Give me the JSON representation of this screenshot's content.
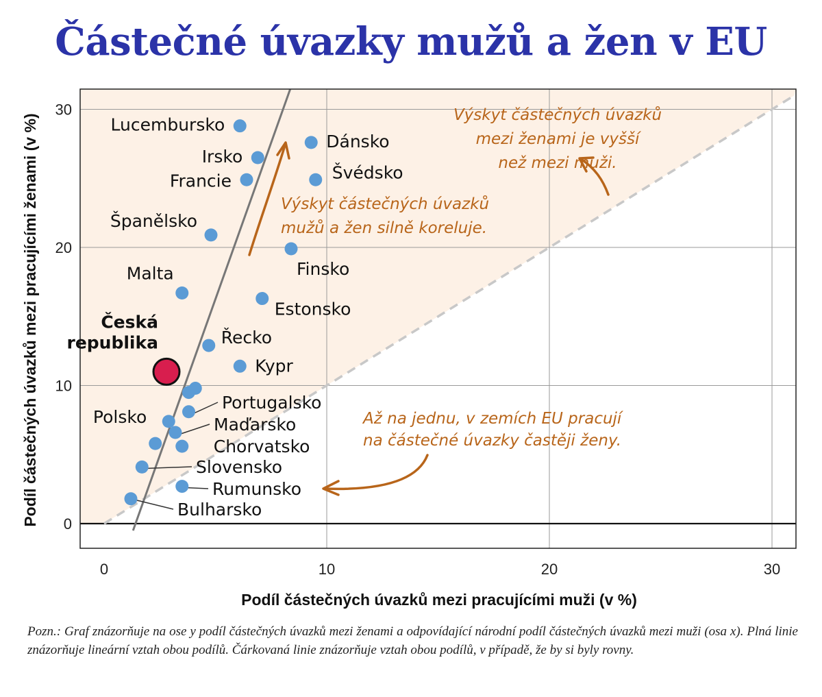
{
  "title": "Částečné úvazky mužů a žen v EU",
  "footnote": "Pozn.: Graf znázorňuje na ose y podíl částečných úvazků mezi ženami a odpovídající národní podíl částečných úvazků mezi muži (osa x). Plná linie znázorňuje lineární vztah obou podílů. Čárkovaná linie znázorňuje vztah obou podílů, v případě, že by si byly rovny.",
  "colors": {
    "title": "#2b33a8",
    "point": "#5b9bd5",
    "highlight": "#d81e4e",
    "annotation": "#b8651a",
    "shaded_region": "#fdf1e6",
    "trend_line": "#777777",
    "equality_line": "#c8c8c8"
  },
  "chart_data": {
    "type": "scatter",
    "xlabel": "Podíl částečných úvazků mezi pracujícími muži (v %)",
    "ylabel": "Podíl částečných úvazků mezi pracujícími ženami (v %)",
    "xlim": [
      -1,
      31
    ],
    "ylim": [
      -1.8,
      31.5
    ],
    "xticks": [
      0,
      10,
      20,
      30
    ],
    "yticks": [
      0,
      10,
      20,
      30
    ],
    "grid": true,
    "points": [
      {
        "label": "Lucembursko",
        "x": 6.1,
        "y": 28.8
      },
      {
        "label": "Dánsko",
        "x": 9.3,
        "y": 27.6
      },
      {
        "label": "Irsko",
        "x": 6.9,
        "y": 26.5
      },
      {
        "label": "Francie",
        "x": 6.4,
        "y": 24.9
      },
      {
        "label": "Švédsko",
        "x": 9.5,
        "y": 24.9
      },
      {
        "label": "Španělsko",
        "x": 4.8,
        "y": 20.9
      },
      {
        "label": "Finsko",
        "x": 8.4,
        "y": 19.9
      },
      {
        "label": "Malta",
        "x": 3.5,
        "y": 16.7
      },
      {
        "label": "Estonsko",
        "x": 7.1,
        "y": 16.3
      },
      {
        "label": "Řecko",
        "x": 4.7,
        "y": 12.9
      },
      {
        "label": "Kypr",
        "x": 6.1,
        "y": 11.4
      },
      {
        "label": "Česká republika",
        "x": 2.8,
        "y": 11.0,
        "highlight": true
      },
      {
        "label": "",
        "x": 4.1,
        "y": 9.8
      },
      {
        "label": "",
        "x": 3.8,
        "y": 9.5
      },
      {
        "label": "Portugalsko",
        "x": 3.8,
        "y": 8.1
      },
      {
        "label": "Polsko",
        "x": 2.9,
        "y": 7.4
      },
      {
        "label": "Maďarsko",
        "x": 3.2,
        "y": 6.6
      },
      {
        "label": "",
        "x": 2.3,
        "y": 5.8
      },
      {
        "label": "Chorvatsko",
        "x": 3.5,
        "y": 5.6
      },
      {
        "label": "Slovensko",
        "x": 1.7,
        "y": 4.1
      },
      {
        "label": "Rumunsko",
        "x": 3.5,
        "y": 2.7
      },
      {
        "label": "Bulharsko",
        "x": 1.2,
        "y": 1.8
      }
    ],
    "trend_line": [
      [
        1.3,
        -0.5
      ],
      [
        8.5,
        32.1
      ]
    ],
    "equality_line": [
      [
        0,
        0
      ],
      [
        31,
        31
      ]
    ],
    "annotations": [
      {
        "lines": [
          "Výskyt částečných úvazků",
          "mezi ženami je vyšší",
          "než mezi muži."
        ]
      },
      {
        "lines": [
          "Výskyt částečných úvazků",
          "mužů a žen silně koreluje."
        ]
      },
      {
        "lines": [
          "Až na jednu, v zemích EU pracují",
          "na částečné úvazky častěji ženy."
        ]
      }
    ]
  }
}
